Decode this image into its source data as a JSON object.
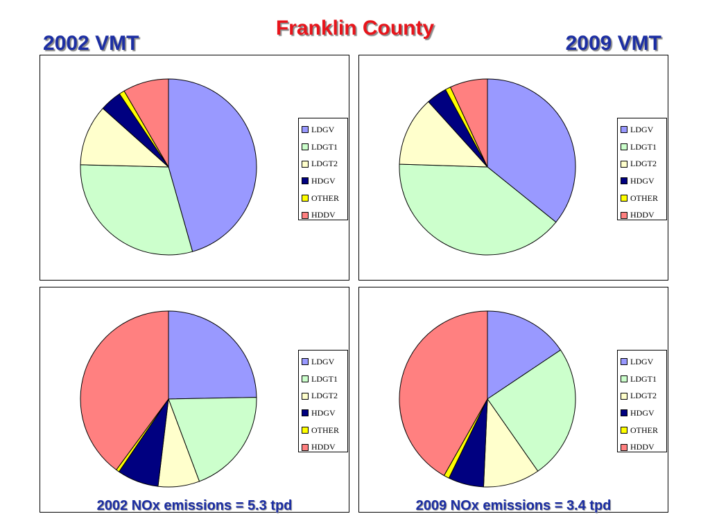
{
  "page": {
    "title": "Franklin County",
    "left_heading": "2002 VMT",
    "right_heading": "2009 VMT"
  },
  "chart_data": [
    {
      "type": "pie",
      "title": "",
      "caption": "",
      "labels": [
        "LDGV",
        "LDGT1",
        "LDGT2",
        "HDGV",
        "OTHER",
        "HDDV"
      ],
      "colors": [
        "#9999ff",
        "#ccffcc",
        "#ffffcc",
        "#000080",
        "#ffff00",
        "#ff8080"
      ],
      "values": [
        45.6,
        29.8,
        11.2,
        4.0,
        1.0,
        8.4
      ]
    },
    {
      "type": "pie",
      "title": "",
      "caption": "",
      "labels": [
        "LDGV",
        "LDGT1",
        "LDGT2",
        "HDGV",
        "OTHER",
        "HDDV"
      ],
      "colors": [
        "#9999ff",
        "#ccffcc",
        "#ffffcc",
        "#000080",
        "#ffff00",
        "#ff8080"
      ],
      "values": [
        35.8,
        39.7,
        12.8,
        3.8,
        1.0,
        6.9
      ]
    },
    {
      "type": "pie",
      "title": "",
      "caption": "2002 NOx emissions = 5.3 tpd",
      "labels": [
        "LDGV",
        "LDGT1",
        "LDGT2",
        "HDGV",
        "OTHER",
        "HDDV"
      ],
      "colors": [
        "#9999ff",
        "#ccffcc",
        "#ffffcc",
        "#000080",
        "#ffff00",
        "#ff8080"
      ],
      "values": [
        24.7,
        19.6,
        7.6,
        7.6,
        0.6,
        39.9
      ]
    },
    {
      "type": "pie",
      "title": "",
      "caption": "2009 NOx emissions = 3.4 tpd",
      "labels": [
        "LDGV",
        "LDGT1",
        "LDGT2",
        "HDGV",
        "OTHER",
        "HDDV"
      ],
      "colors": [
        "#9999ff",
        "#ccffcc",
        "#ffffcc",
        "#000080",
        "#ffff00",
        "#ff8080"
      ],
      "values": [
        15.6,
        24.7,
        10.4,
        6.5,
        1.0,
        41.8
      ]
    }
  ]
}
